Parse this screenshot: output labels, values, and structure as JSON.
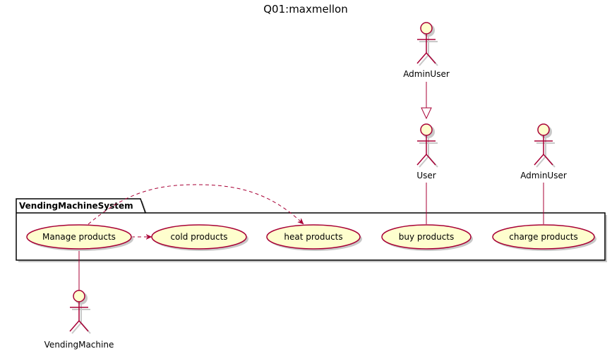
{
  "diagram": {
    "title": "Q01:maxmellon",
    "package": {
      "name": "VendingMachineSystem"
    },
    "actors": {
      "admin_user_top": "AdminUser",
      "user": "User",
      "admin_user_right": "AdminUser",
      "vending_machine": "VendingMachine"
    },
    "use_cases": {
      "manage_products": "Manage products",
      "cold_products": "cold products",
      "heat_products": "heat products",
      "buy_products": "buy products",
      "charge_products": "charge products"
    },
    "relations": [
      {
        "from": "AdminUser",
        "to": "User",
        "kind": "generalization"
      },
      {
        "from": "User",
        "to": "buy products",
        "kind": "association"
      },
      {
        "from": "AdminUser",
        "to": "charge products",
        "kind": "association"
      },
      {
        "from": "VendingMachine",
        "to": "Manage products",
        "kind": "association"
      },
      {
        "from": "Manage products",
        "to": "cold products",
        "kind": "dependency"
      },
      {
        "from": "Manage products",
        "to": "heat products",
        "kind": "dependency"
      }
    ],
    "colors": {
      "line": "#A80036",
      "fill": "#FEFECE",
      "shadow": "#C8C8C8",
      "package_border": "#000000"
    }
  }
}
